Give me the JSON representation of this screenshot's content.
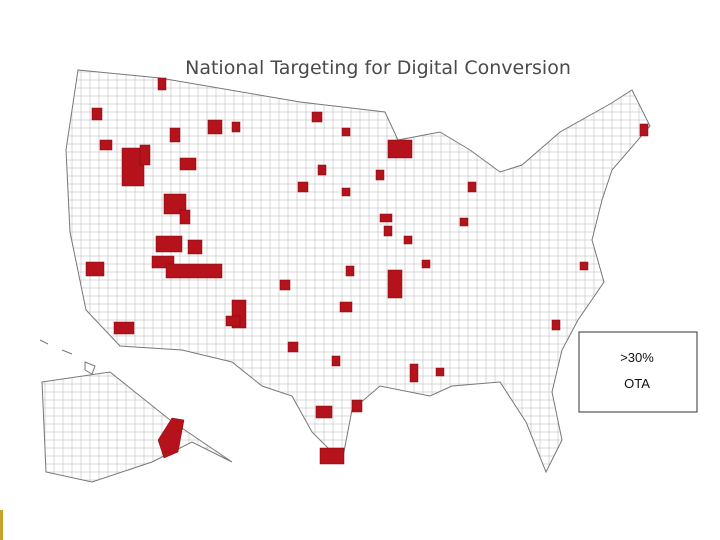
{
  "header": {
    "title": "National Targeting for Digital Conversion"
  },
  "legend": {
    "items": [
      ">30%",
      "OTA"
    ]
  }
}
